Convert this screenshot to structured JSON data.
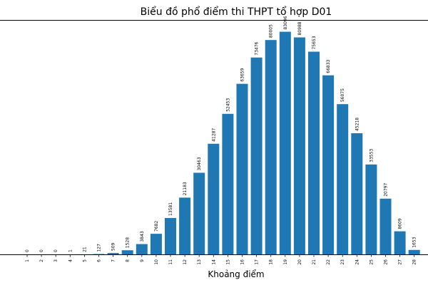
{
  "chart_data": {
    "type": "bar",
    "title": "Biểu đồ phổ điểm thi THPT tổ hợp D01",
    "xlabel": "Khoảng điểm",
    "ylabel": "",
    "ylim": [
      0,
      87500
    ],
    "grid": false,
    "color": "#1f77b4",
    "categories": [
      "1",
      "2",
      "3",
      "4",
      "5",
      "6",
      "7",
      "8",
      "9",
      "10",
      "11",
      "12",
      "13",
      "14",
      "15",
      "16",
      "17",
      "18",
      "19",
      "20",
      "21",
      "22",
      "23",
      "24",
      "25",
      "26",
      "27",
      "28"
    ],
    "values": [
      0,
      0,
      0,
      1,
      21,
      127,
      509,
      1528,
      3843,
      7682,
      13581,
      21183,
      30463,
      41287,
      52453,
      63659,
      73476,
      80005,
      83096,
      80988,
      75653,
      66833,
      56075,
      45218,
      33553,
      20797,
      8609,
      1653
    ]
  }
}
